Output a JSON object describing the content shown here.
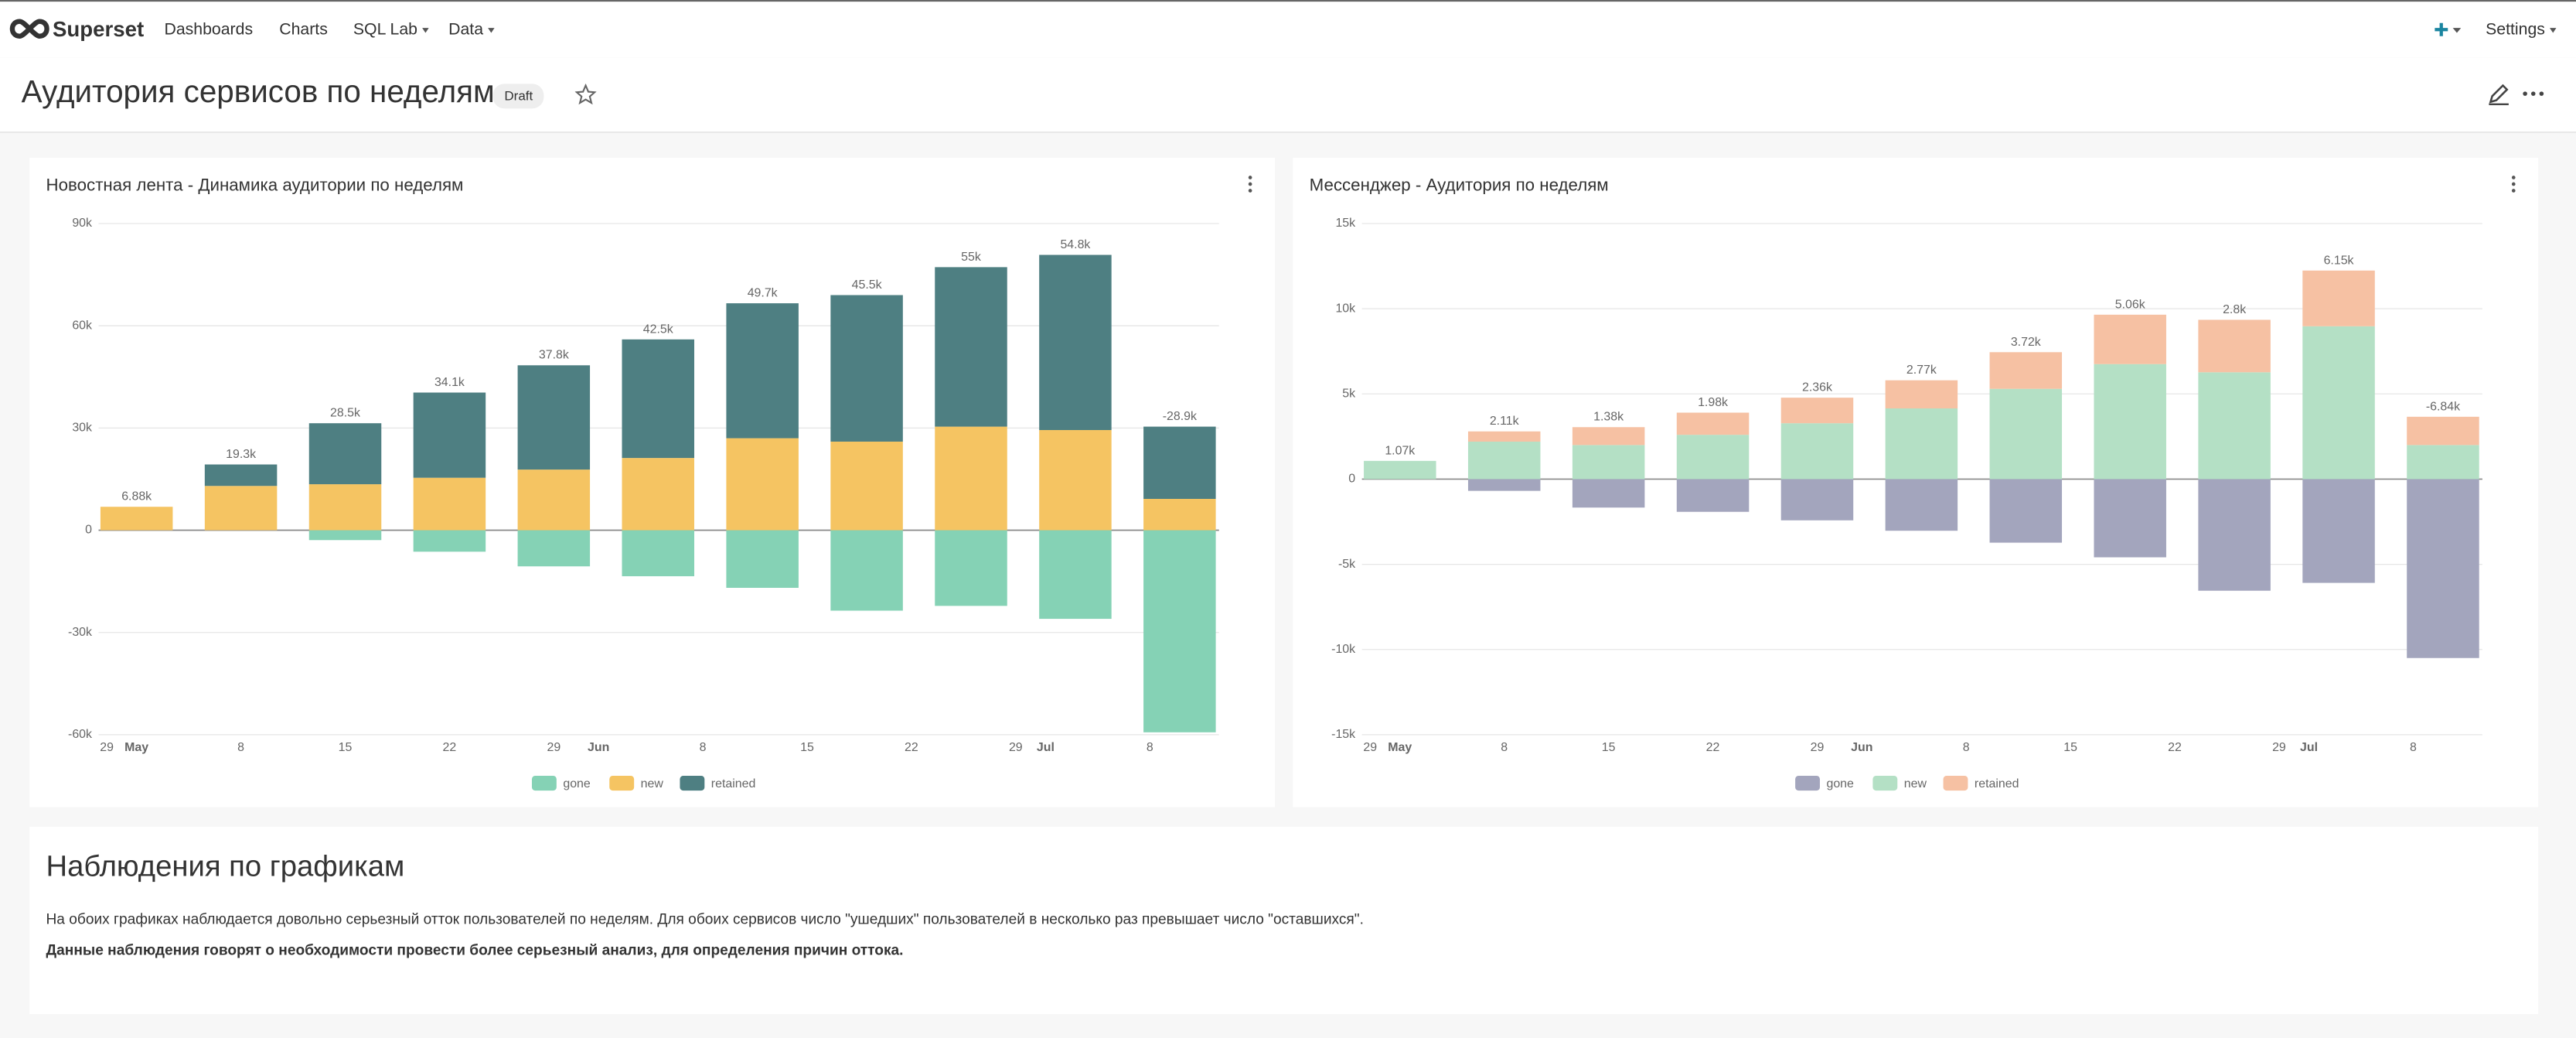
{
  "nav": {
    "brand": "Superset",
    "menu": [
      "Dashboards",
      "Charts",
      "SQL Lab",
      "Data"
    ],
    "settings": "Settings"
  },
  "header": {
    "title": "Аудитория сервисов по неделям",
    "badge": "Draft"
  },
  "chart_data": [
    {
      "type": "bar",
      "stacked": true,
      "title": "Новостная лента - Динамика аудитории по неделям",
      "categories": [
        null,
        null,
        null,
        null,
        null,
        null,
        null,
        null,
        null,
        null,
        null
      ],
      "x_labels": [
        "29",
        "May",
        "8",
        "15",
        "22",
        "29",
        "Jun",
        "8",
        "15",
        "22",
        "29",
        "Jul",
        "8"
      ],
      "series": [
        {
          "name": "gone",
          "color": "#85d2b5",
          "values": [
            0,
            0,
            -2900,
            -6300,
            -10600,
            -13500,
            -16900,
            -23600,
            -22200,
            -26000,
            -59300
          ]
        },
        {
          "name": "new",
          "color": "#f5c462",
          "values": [
            6880,
            13000,
            13500,
            15400,
            17800,
            21200,
            27000,
            26000,
            30400,
            29400,
            9200
          ]
        },
        {
          "name": "retained",
          "color": "#4e7f82",
          "values": [
            0,
            6300,
            17900,
            25000,
            30600,
            34800,
            39600,
            43000,
            46800,
            51400,
            21200
          ]
        }
      ],
      "totals": [
        6880,
        19300,
        28500,
        34100,
        37800,
        42500,
        49700,
        45500,
        55000,
        54800,
        -28900
      ],
      "total_labels": [
        "6.88k",
        "19.3k",
        "28.5k",
        "34.1k",
        "37.8k",
        "42.5k",
        "49.7k",
        "45.5k",
        "55k",
        "54.8k",
        "-28.9k"
      ],
      "ylim": [
        -60000,
        90000
      ],
      "yticks": [
        {
          "value": -60000,
          "label": "-60k"
        },
        {
          "value": -30000,
          "label": "-30k"
        },
        0,
        {
          "value": 30000,
          "label": "30k"
        },
        {
          "value": 60000,
          "label": "60k"
        },
        {
          "value": 90000,
          "label": "90k"
        }
      ],
      "grid": true,
      "legend": "bottom"
    },
    {
      "type": "bar",
      "stacked": true,
      "title": "Мессенджер - Аудитория по неделям",
      "categories": [
        null,
        null,
        null,
        null,
        null,
        null,
        null,
        null,
        null,
        null,
        null
      ],
      "x_labels": [
        "29",
        "May",
        "8",
        "15",
        "22",
        "29",
        "Jun",
        "8",
        "15",
        "22",
        "29",
        "Jul",
        "8"
      ],
      "series": [
        {
          "name": "gone",
          "color": "#a3a5bd",
          "values": [
            0,
            -690,
            -1670,
            -1920,
            -2420,
            -3030,
            -3730,
            -4590,
            -6550,
            -6090,
            -10500
          ]
        },
        {
          "name": "new",
          "color": "#b4e0c5",
          "values": [
            1070,
            2200,
            2000,
            2600,
            3280,
            4150,
            5300,
            6750,
            6270,
            8970,
            2000
          ]
        },
        {
          "name": "retained",
          "color": "#f6c1a3",
          "values": [
            0,
            600,
            1050,
            1300,
            1500,
            1650,
            2150,
            2900,
            3080,
            3270,
            1660
          ]
        }
      ],
      "totals": [
        1070,
        2110,
        1380,
        1980,
        2360,
        2770,
        3720,
        5060,
        2800,
        6150,
        -6840
      ],
      "total_labels": [
        "1.07k",
        "2.11k",
        "1.38k",
        "1.98k",
        "2.36k",
        "2.77k",
        "3.72k",
        "5.06k",
        "2.8k",
        "6.15k",
        "-6.84k"
      ],
      "ylim": [
        -15000,
        15000
      ],
      "yticks": [
        {
          "value": -15000,
          "label": "-15k"
        },
        {
          "value": -10000,
          "label": "-10k"
        },
        {
          "value": -5000,
          "label": "-5k"
        },
        0,
        {
          "value": 5000,
          "label": "5k"
        },
        {
          "value": 10000,
          "label": "10k"
        },
        {
          "value": 15000,
          "label": "15k"
        }
      ],
      "grid": true,
      "legend": "bottom"
    }
  ],
  "markdown": {
    "heading": "Наблюдения по графикам",
    "paragraphs": [
      "На обоих графиках наблюдается довольно серьезный отток пользователей по неделям. Для обоих сервисов число \"ушедших\" пользователей в несколько раз превышает число \"оставшихся\".",
      "Данные наблюдения говорят о необходимости провести более серьезный анализ, для определения причин оттока."
    ]
  }
}
